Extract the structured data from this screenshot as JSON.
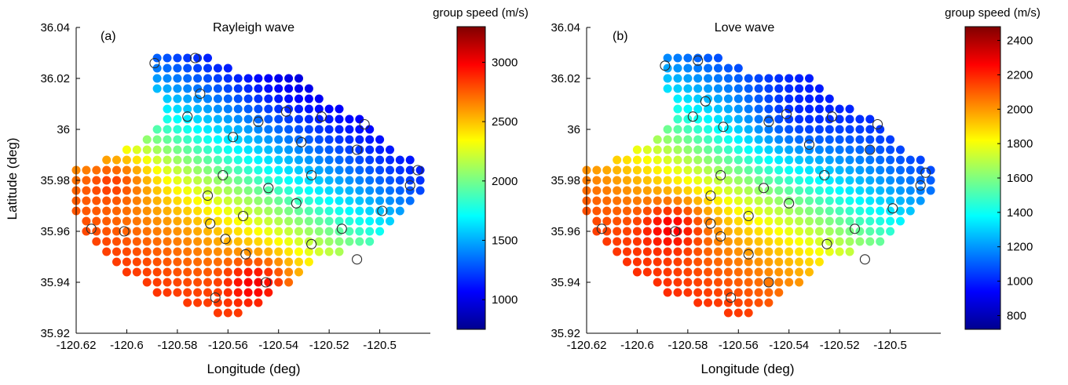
{
  "chart_data": [
    {
      "type": "scatter",
      "panel_label": "(a)",
      "title": "Rayleigh wave",
      "xlabel": "Longitude (deg)",
      "ylabel": "Latitude (deg)",
      "xlim": [
        -120.62,
        -120.48
      ],
      "ylim": [
        35.92,
        36.04
      ],
      "x_ticks": [
        -120.62,
        -120.6,
        -120.58,
        -120.56,
        -120.54,
        -120.52,
        -120.5
      ],
      "x_tick_labels": [
        "-120.62",
        "-120.6",
        "-120.58",
        "-120.56",
        "-120.54",
        "-120.52",
        "-120.5"
      ],
      "y_ticks": [
        35.92,
        35.94,
        35.96,
        35.98,
        36,
        36.02,
        36.04
      ],
      "y_tick_labels": [
        "35.92",
        "35.94",
        "35.96",
        "35.98",
        "36",
        "36.02",
        "36.04"
      ],
      "colorbar": {
        "title": "group speed (m/s)",
        "range": [
          750,
          3300
        ],
        "ticks": [
          1000,
          1500,
          2000,
          2500,
          3000
        ],
        "tick_labels": [
          "1000",
          "1500",
          "2000",
          "2500",
          "3000"
        ],
        "colormap": "jet"
      },
      "grid_spacing_deg": 0.004,
      "speed_field": {
        "min": 750,
        "max": 3300,
        "fast_value": 2950,
        "slow_value": 850,
        "fast_region": "southwest",
        "slow_region": "northeast",
        "fastest_patches": [
          {
            "lon": -120.548,
            "lat": 35.941,
            "speed": 3300
          },
          {
            "lon": -120.604,
            "lat": 35.981,
            "speed": 3250
          }
        ],
        "slowest_patch": {
          "lon": -120.537,
          "lat": 36.018,
          "speed": 800
        }
      },
      "stations": [
        {
          "lon": -120.589,
          "lat": 36.026
        },
        {
          "lon": -120.573,
          "lat": 36.028
        },
        {
          "lon": -120.571,
          "lat": 36.014
        },
        {
          "lon": -120.576,
          "lat": 36.005
        },
        {
          "lon": -120.558,
          "lat": 35.997
        },
        {
          "lon": -120.548,
          "lat": 36.003
        },
        {
          "lon": -120.537,
          "lat": 36.007
        },
        {
          "lon": -120.531,
          "lat": 35.995
        },
        {
          "lon": -120.523,
          "lat": 36.005
        },
        {
          "lon": -120.506,
          "lat": 36.002
        },
        {
          "lon": -120.509,
          "lat": 35.992
        },
        {
          "lon": -120.527,
          "lat": 35.982
        },
        {
          "lon": -120.485,
          "lat": 35.984
        },
        {
          "lon": -120.488,
          "lat": 35.978
        },
        {
          "lon": -120.499,
          "lat": 35.968
        },
        {
          "lon": -120.515,
          "lat": 35.961
        },
        {
          "lon": -120.509,
          "lat": 35.949
        },
        {
          "lon": -120.527,
          "lat": 35.955
        },
        {
          "lon": -120.533,
          "lat": 35.971
        },
        {
          "lon": -120.544,
          "lat": 35.977
        },
        {
          "lon": -120.554,
          "lat": 35.966
        },
        {
          "lon": -120.562,
          "lat": 35.982
        },
        {
          "lon": -120.568,
          "lat": 35.974
        },
        {
          "lon": -120.567,
          "lat": 35.963
        },
        {
          "lon": -120.561,
          "lat": 35.957
        },
        {
          "lon": -120.553,
          "lat": 35.951
        },
        {
          "lon": -120.545,
          "lat": 35.94
        },
        {
          "lon": -120.565,
          "lat": 35.934
        },
        {
          "lon": -120.601,
          "lat": 35.96
        },
        {
          "lon": -120.614,
          "lat": 35.961
        }
      ]
    },
    {
      "type": "scatter",
      "panel_label": "(b)",
      "title": "Love wave",
      "xlabel": "Longitude (deg)",
      "ylabel": "",
      "xlim": [
        -120.62,
        -120.48
      ],
      "ylim": [
        35.92,
        36.04
      ],
      "x_ticks": [
        -120.62,
        -120.6,
        -120.58,
        -120.56,
        -120.54,
        -120.52,
        -120.5
      ],
      "x_tick_labels": [
        "-120.62",
        "-120.6",
        "-120.58",
        "-120.56",
        "-120.54",
        "-120.52",
        "-120.5"
      ],
      "y_ticks": [
        35.92,
        35.94,
        35.96,
        35.98,
        36,
        36.02,
        36.04
      ],
      "y_tick_labels": [
        "35.92",
        "35.94",
        "35.96",
        "35.98",
        "36",
        "36.02",
        "36.04"
      ],
      "colorbar": {
        "title": "group speed (m/s)",
        "range": [
          720,
          2480
        ],
        "ticks": [
          800,
          1000,
          1200,
          1400,
          1600,
          1800,
          2000,
          2200,
          2400
        ],
        "tick_labels": [
          "800",
          "1000",
          "1200",
          "1400",
          "1600",
          "1800",
          "2000",
          "2200",
          "2400"
        ],
        "colormap": "jet"
      },
      "grid_spacing_deg": 0.004,
      "speed_field": {
        "min": 720,
        "max": 2480,
        "fast_value": 2250,
        "slow_value": 880,
        "fast_region": "southwest",
        "slow_region": "northeast",
        "fastest_patches": [
          {
            "lon": -120.585,
            "lat": 35.963,
            "speed": 2480
          }
        ],
        "slowest_patch": {
          "lon": -120.54,
          "lat": 36.002,
          "speed": 760
        }
      },
      "stations": [
        {
          "lon": -120.589,
          "lat": 36.025
        },
        {
          "lon": -120.576,
          "lat": 36.027
        },
        {
          "lon": -120.573,
          "lat": 36.011
        },
        {
          "lon": -120.578,
          "lat": 36.005
        },
        {
          "lon": -120.566,
          "lat": 36.001
        },
        {
          "lon": -120.548,
          "lat": 36.003
        },
        {
          "lon": -120.541,
          "lat": 36.006
        },
        {
          "lon": -120.532,
          "lat": 35.994
        },
        {
          "lon": -120.523,
          "lat": 36.005
        },
        {
          "lon": -120.505,
          "lat": 36.002
        },
        {
          "lon": -120.508,
          "lat": 35.992
        },
        {
          "lon": -120.526,
          "lat": 35.982
        },
        {
          "lon": -120.486,
          "lat": 35.983
        },
        {
          "lon": -120.488,
          "lat": 35.978
        },
        {
          "lon": -120.499,
          "lat": 35.969
        },
        {
          "lon": -120.514,
          "lat": 35.961
        },
        {
          "lon": -120.51,
          "lat": 35.949
        },
        {
          "lon": -120.525,
          "lat": 35.955
        },
        {
          "lon": -120.54,
          "lat": 35.971
        },
        {
          "lon": -120.55,
          "lat": 35.977
        },
        {
          "lon": -120.556,
          "lat": 35.966
        },
        {
          "lon": -120.567,
          "lat": 35.982
        },
        {
          "lon": -120.571,
          "lat": 35.974
        },
        {
          "lon": -120.571,
          "lat": 35.963
        },
        {
          "lon": -120.567,
          "lat": 35.958
        },
        {
          "lon": -120.556,
          "lat": 35.951
        },
        {
          "lon": -120.548,
          "lat": 35.94
        },
        {
          "lon": -120.563,
          "lat": 35.934
        },
        {
          "lon": -120.585,
          "lat": 35.96
        },
        {
          "lon": -120.614,
          "lat": 35.961
        }
      ]
    }
  ]
}
